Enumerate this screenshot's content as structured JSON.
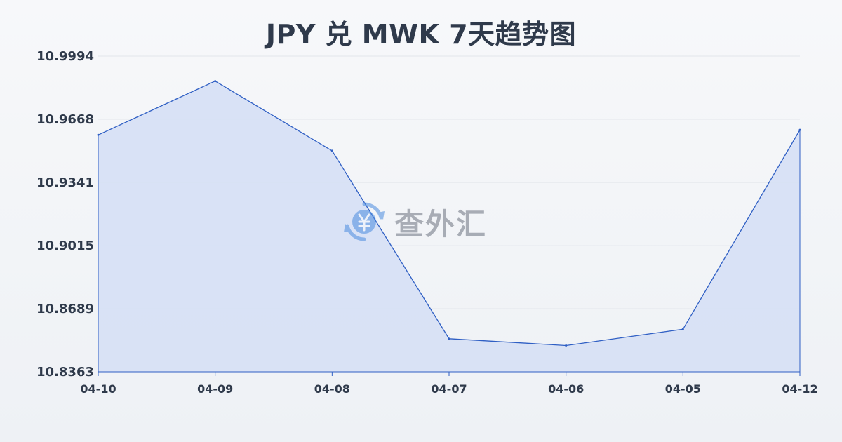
{
  "title": "JPY 兑 MWK 7天趋势图",
  "watermark": {
    "text": "查外汇",
    "icon": "yen-exchange-icon"
  },
  "colors": {
    "line": "#2f5fc4",
    "fill": "#d6e0f5",
    "grid": "#e3e6eb",
    "text": "#2f3a4b"
  },
  "chart_data": {
    "type": "area",
    "title": "JPY 兑 MWK 7天趋势图",
    "categories": [
      "04-10",
      "04-09",
      "04-08",
      "04-07",
      "04-06",
      "04-05",
      "04-12"
    ],
    "values": [
      10.9587,
      10.9865,
      10.9505,
      10.8534,
      10.8499,
      10.8583,
      10.9613
    ],
    "yticks": [
      "10.9994",
      "10.9668",
      "10.9341",
      "10.9015",
      "10.8689",
      "10.8363"
    ],
    "ylim": [
      10.8363,
      10.9994
    ],
    "grid": true,
    "legend": "none"
  }
}
